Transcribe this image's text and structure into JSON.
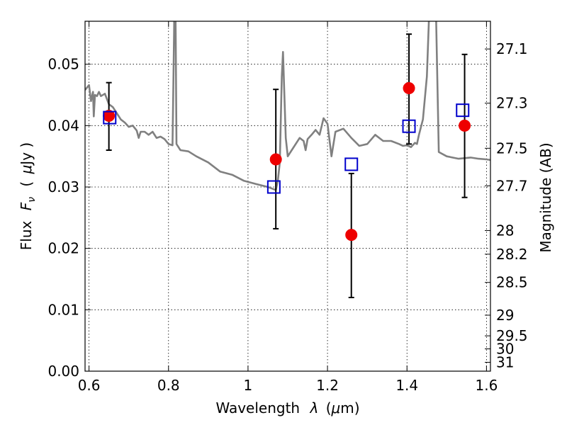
{
  "chart_data": {
    "type": "scatter",
    "title": "",
    "xlabel_text": "Wavelength",
    "xlabel_symbol": "λ",
    "xlabel_unit_open": "(",
    "xlabel_unit_mu": "μ",
    "xlabel_unit_rest": "m)",
    "ylabel_text": "Flux",
    "ylabel_symbol": "F",
    "ylabel_symbol_sub": "ν",
    "ylabel_unit_open": "(",
    "ylabel_unit_mu": "μ",
    "ylabel_unit_rest": "Jy )",
    "y2label": "Magnitude (AB)",
    "xlim": [
      0.59,
      1.61
    ],
    "ylim": [
      0.0,
      0.057
    ],
    "grid": true,
    "colors": {
      "model": "#808080",
      "observed": "#ee0000",
      "model_photometry": "#0000cc",
      "errorbar": "#000000"
    },
    "x_ticks": [
      0.6,
      0.8,
      1.0,
      1.2,
      1.4,
      1.6
    ],
    "x_tick_labels": [
      "0.6",
      "0.8",
      "1",
      "1.2",
      "1.4",
      "1.6"
    ],
    "y_ticks": [
      0.0,
      0.01,
      0.02,
      0.03,
      0.04,
      0.05
    ],
    "y_tick_labels": [
      "0.00",
      "0.01",
      "0.02",
      "0.03",
      "0.04",
      "0.05"
    ],
    "y2_ticks": [
      {
        "label": "27.1",
        "mag": 27.1
      },
      {
        "label": "27.3",
        "mag": 27.3
      },
      {
        "label": "27.5",
        "mag": 27.5
      },
      {
        "label": "27.7",
        "mag": 27.7
      },
      {
        "label": "28",
        "mag": 28.0
      },
      {
        "label": "28.2",
        "mag": 28.2
      },
      {
        "label": "28.5",
        "mag": 28.5
      },
      {
        "label": "29",
        "mag": 29.0
      },
      {
        "label": "29.5",
        "mag": 29.5
      },
      {
        "label": "30",
        "mag": 30.0
      },
      {
        "label": "31",
        "mag": 31.0
      }
    ],
    "model_spectrum": {
      "x": [
        0.59,
        0.6,
        0.605,
        0.61,
        0.612,
        0.615,
        0.62,
        0.625,
        0.63,
        0.64,
        0.65,
        0.66,
        0.67,
        0.68,
        0.69,
        0.7,
        0.71,
        0.72,
        0.725,
        0.73,
        0.74,
        0.75,
        0.76,
        0.77,
        0.78,
        0.79,
        0.8,
        0.81,
        0.814,
        0.816,
        0.818,
        0.82,
        0.83,
        0.85,
        0.87,
        0.9,
        0.93,
        0.96,
        0.99,
        1.02,
        1.05,
        1.07,
        1.075,
        1.08,
        1.085,
        1.088,
        1.09,
        1.095,
        1.1,
        1.11,
        1.13,
        1.14,
        1.145,
        1.15,
        1.16,
        1.17,
        1.18,
        1.19,
        1.2,
        1.21,
        1.22,
        1.24,
        1.26,
        1.28,
        1.3,
        1.32,
        1.34,
        1.36,
        1.38,
        1.39,
        1.4,
        1.41,
        1.42,
        1.425,
        1.43,
        1.44,
        1.45,
        1.46,
        1.47,
        1.48,
        1.5,
        1.53,
        1.56,
        1.58,
        1.6,
        1.61
      ],
      "y": [
        0.0458,
        0.0466,
        0.044,
        0.0455,
        0.0415,
        0.045,
        0.0448,
        0.0455,
        0.0448,
        0.0452,
        0.0435,
        0.043,
        0.042,
        0.041,
        0.0405,
        0.0398,
        0.04,
        0.0392,
        0.038,
        0.039,
        0.039,
        0.0385,
        0.039,
        0.038,
        0.0382,
        0.0378,
        0.037,
        0.0368,
        0.055,
        0.068,
        0.055,
        0.037,
        0.036,
        0.0358,
        0.035,
        0.034,
        0.0325,
        0.032,
        0.031,
        0.0305,
        0.03,
        0.0295,
        0.031,
        0.034,
        0.048,
        0.052,
        0.048,
        0.038,
        0.035,
        0.036,
        0.038,
        0.0375,
        0.036,
        0.0378,
        0.0385,
        0.0393,
        0.0385,
        0.0412,
        0.0403,
        0.035,
        0.039,
        0.0395,
        0.038,
        0.0367,
        0.037,
        0.0385,
        0.0375,
        0.0375,
        0.037,
        0.0367,
        0.0368,
        0.0365,
        0.0372,
        0.037,
        0.0385,
        0.041,
        0.048,
        0.066,
        0.068,
        0.0357,
        0.035,
        0.0346,
        0.0348,
        0.0346,
        0.0345,
        0.0344
      ]
    },
    "series": [
      {
        "marker": "circle",
        "x": [
          0.65,
          1.07,
          1.26,
          1.405,
          1.545
        ],
        "y": [
          0.0416,
          0.0345,
          0.0222,
          0.0461,
          0.04
        ],
        "yerr_low": [
          0.036,
          0.0232,
          0.012,
          0.037,
          0.0283
        ],
        "yerr_high": [
          0.047,
          0.0459,
          0.0322,
          0.0549,
          0.0516
        ]
      },
      {
        "marker": "square",
        "x": [
          0.652,
          1.065,
          1.26,
          1.405,
          1.54
        ],
        "y": [
          0.0413,
          0.03,
          0.0337,
          0.0399,
          0.0425
        ]
      }
    ]
  }
}
